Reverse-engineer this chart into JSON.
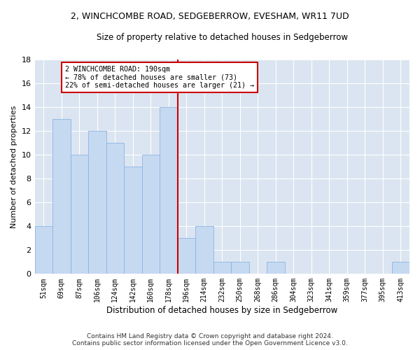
{
  "title1": "2, WINCHCOMBE ROAD, SEDGEBERROW, EVESHAM, WR11 7UD",
  "title2": "Size of property relative to detached houses in Sedgeberrow",
  "xlabel": "Distribution of detached houses by size in Sedgeberrow",
  "ylabel": "Number of detached properties",
  "categories": [
    "51sqm",
    "69sqm",
    "87sqm",
    "106sqm",
    "124sqm",
    "142sqm",
    "160sqm",
    "178sqm",
    "196sqm",
    "214sqm",
    "232sqm",
    "250sqm",
    "268sqm",
    "286sqm",
    "304sqm",
    "323sqm",
    "341sqm",
    "359sqm",
    "377sqm",
    "395sqm",
    "413sqm"
  ],
  "values": [
    4,
    13,
    10,
    12,
    11,
    9,
    10,
    14,
    3,
    4,
    1,
    1,
    0,
    1,
    0,
    0,
    0,
    0,
    0,
    0,
    1
  ],
  "bar_color": "#C5D9F1",
  "bar_edge_color": "#8DB4E2",
  "vline_x": 7.5,
  "vline_color": "#CC0000",
  "annotation_line1": "2 WINCHCOMBE ROAD: 190sqm",
  "annotation_line2": "← 78% of detached houses are smaller (73)",
  "annotation_line3": "22% of semi-detached houses are larger (21) →",
  "annotation_box_facecolor": "#ffffff",
  "annotation_box_edgecolor": "#CC0000",
  "ylim": [
    0,
    18
  ],
  "yticks": [
    0,
    2,
    4,
    6,
    8,
    10,
    12,
    14,
    16,
    18
  ],
  "grid_color": "#ffffff",
  "fig_facecolor": "#ffffff",
  "plot_facecolor": "#DBE5F1",
  "footer": "Contains HM Land Registry data © Crown copyright and database right 2024.\nContains public sector information licensed under the Open Government Licence v3.0."
}
